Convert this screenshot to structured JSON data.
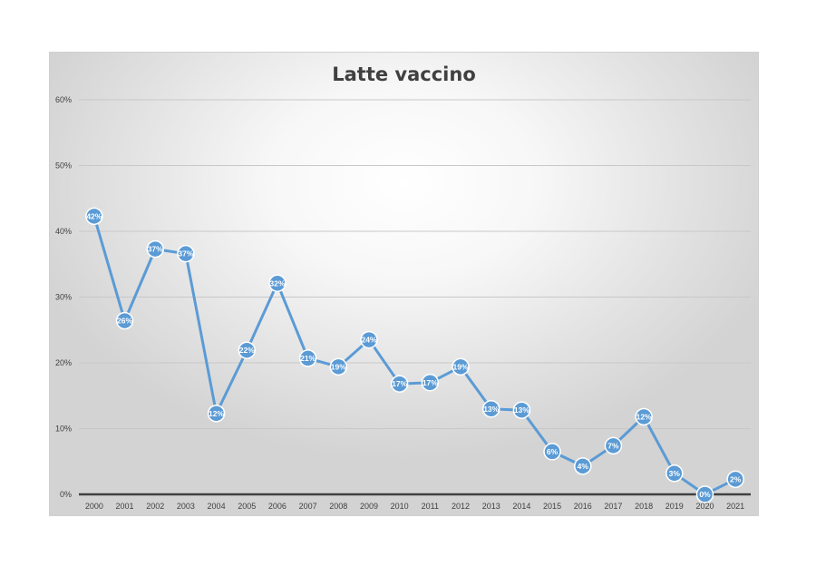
{
  "chart_data": {
    "type": "line",
    "title": "Latte vaccino",
    "xlabel": "",
    "ylabel": "",
    "ylim": [
      0,
      60
    ],
    "y_ticks": [
      "0%",
      "10%",
      "20%",
      "30%",
      "40%",
      "50%",
      "60%"
    ],
    "categories": [
      "2000",
      "2001",
      "2002",
      "2003",
      "2004",
      "2005",
      "2006",
      "2007",
      "2008",
      "2009",
      "2010",
      "2011",
      "2012",
      "2013",
      "2014",
      "2015",
      "2016",
      "2017",
      "2018",
      "2019",
      "2020",
      "2021"
    ],
    "series": [
      {
        "values": [
          42.3,
          26.4,
          37.3,
          36.6,
          12.3,
          21.9,
          32.1,
          20.7,
          19.4,
          23.5,
          16.8,
          17.0,
          19.4,
          13.0,
          12.8,
          6.5,
          4.3,
          7.4,
          11.8,
          3.2,
          0.0,
          2.3
        ],
        "labels": [
          "42%",
          "26%",
          "37%",
          "37%",
          "12%",
          "22%",
          "32%",
          "21%",
          "19%",
          "24%",
          "17%",
          "17%",
          "19%",
          "13%",
          "13%",
          "6%",
          "4%",
          "7%",
          "12%",
          "3%",
          "0%",
          "2%"
        ]
      }
    ],
    "grid": true,
    "legend": "none",
    "colors": {
      "line": "#5b9bd5",
      "grid": "#c8c8c8",
      "axis": "#404040",
      "label": "#ffffff"
    }
  }
}
